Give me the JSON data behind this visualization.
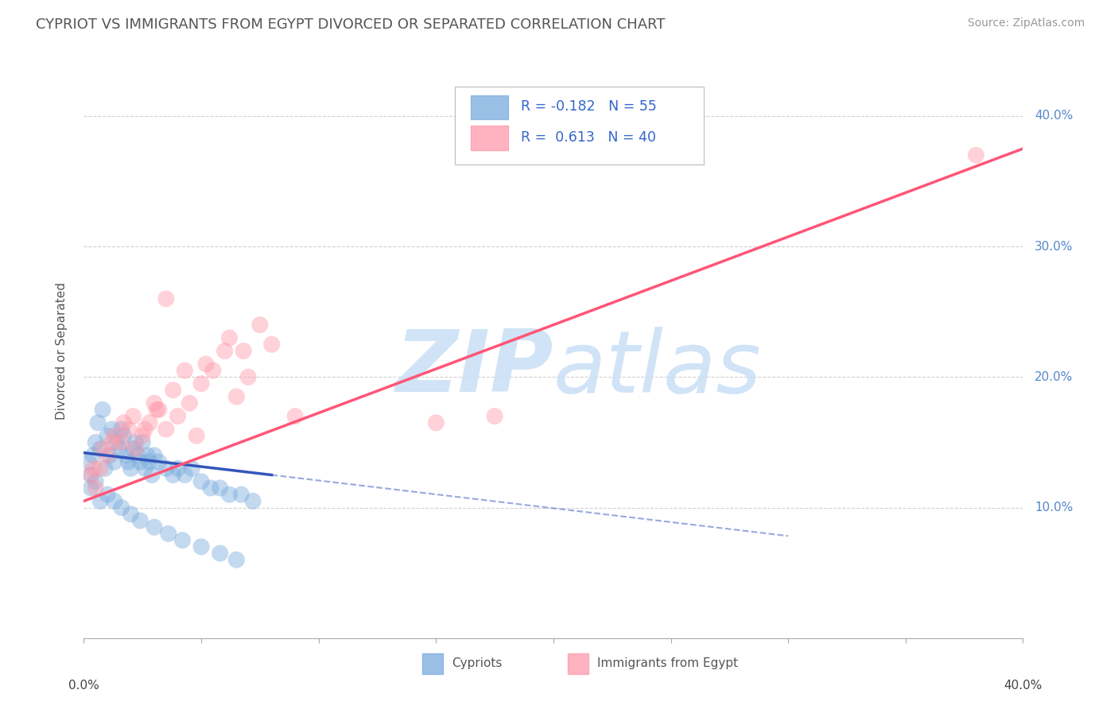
{
  "title": "CYPRIOT VS IMMIGRANTS FROM EGYPT DIVORCED OR SEPARATED CORRELATION CHART",
  "source_text": "Source: ZipAtlas.com",
  "ylabel": "Divorced or Separated",
  "xmin": 0.0,
  "xmax": 40.0,
  "ymin": 0.0,
  "ymax": 44.0,
  "yticks": [
    10.0,
    20.0,
    30.0,
    40.0
  ],
  "xtick_positions": [
    0.0,
    5.0,
    10.0,
    15.0,
    20.0,
    25.0,
    30.0,
    35.0,
    40.0
  ],
  "legend_r1": "-0.182",
  "legend_n1": "55",
  "legend_r2": "0.613",
  "legend_n2": "40",
  "cypriot_color": "#7aabdd",
  "egypt_color": "#ff99aa",
  "cypriot_line_color": "#3355bb",
  "egypt_line_color": "#ff5577",
  "watermark_color": "#cce0f5",
  "legend_label1": "Cypriots",
  "legend_label2": "Immigrants from Egypt",
  "cypriot_x": [
    0.2,
    0.3,
    0.4,
    0.5,
    0.6,
    0.7,
    0.8,
    0.9,
    1.0,
    1.1,
    1.2,
    1.3,
    1.4,
    1.5,
    1.6,
    1.7,
    1.8,
    1.9,
    2.0,
    2.1,
    2.2,
    2.3,
    2.4,
    2.5,
    2.6,
    2.7,
    2.8,
    2.9,
    3.0,
    3.2,
    3.5,
    3.8,
    4.0,
    4.3,
    4.6,
    5.0,
    5.4,
    5.8,
    6.2,
    6.7,
    7.2,
    0.3,
    0.5,
    0.7,
    1.0,
    1.3,
    1.6,
    2.0,
    2.4,
    3.0,
    3.6,
    4.2,
    5.0,
    5.8,
    6.5
  ],
  "cypriot_y": [
    13.5,
    12.5,
    14.0,
    15.0,
    16.5,
    14.5,
    17.5,
    13.0,
    15.5,
    14.0,
    16.0,
    13.5,
    15.0,
    14.5,
    16.0,
    15.5,
    14.0,
    13.5,
    13.0,
    14.5,
    15.0,
    14.0,
    13.5,
    15.0,
    13.0,
    14.0,
    13.5,
    12.5,
    14.0,
    13.5,
    13.0,
    12.5,
    13.0,
    12.5,
    13.0,
    12.0,
    11.5,
    11.5,
    11.0,
    11.0,
    10.5,
    11.5,
    12.0,
    10.5,
    11.0,
    10.5,
    10.0,
    9.5,
    9.0,
    8.5,
    8.0,
    7.5,
    7.0,
    6.5,
    6.0
  ],
  "egypt_x": [
    0.3,
    0.5,
    0.7,
    1.0,
    1.3,
    1.6,
    1.9,
    2.2,
    2.5,
    2.8,
    3.1,
    3.5,
    4.0,
    4.5,
    5.0,
    5.5,
    6.0,
    6.5,
    7.0,
    8.0,
    0.4,
    0.8,
    1.2,
    1.7,
    2.1,
    2.6,
    3.0,
    3.8,
    4.3,
    5.2,
    6.2,
    3.2,
    3.5,
    6.8,
    17.5,
    7.5,
    38.0,
    9.0,
    15.0,
    4.8
  ],
  "egypt_y": [
    12.5,
    11.5,
    13.0,
    14.0,
    15.5,
    15.0,
    16.0,
    14.5,
    15.5,
    16.5,
    17.5,
    16.0,
    17.0,
    18.0,
    19.5,
    20.5,
    22.0,
    18.5,
    20.0,
    22.5,
    13.0,
    14.5,
    15.0,
    16.5,
    17.0,
    16.0,
    18.0,
    19.0,
    20.5,
    21.0,
    23.0,
    17.5,
    26.0,
    22.0,
    17.0,
    24.0,
    37.0,
    17.0,
    16.5,
    15.5
  ]
}
